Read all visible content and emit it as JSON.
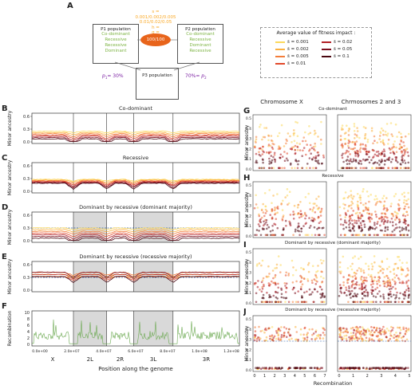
{
  "panelA": {
    "label": "A",
    "p1": {
      "title": "P1 population",
      "types": [
        "Co-dominant",
        "Recessive",
        "Recessive",
        "Dominant"
      ]
    },
    "p2": {
      "title": "P2 population",
      "types": [
        "Co-dominant",
        "Recessive",
        "Dominant",
        "Recessive"
      ]
    },
    "p3": {
      "title": "P3 population"
    },
    "s_line1": "s =",
    "s_line2": "0.001/0.002/0.005",
    "s_line3": "0.01/0.02/0.05",
    "h_line": "h =",
    "g_line": "g =",
    "center_label": "100/100",
    "p1_weight": "30%",
    "p1_sym": "p",
    "p2_weight": "70%",
    "p2_sym": "p"
  },
  "legend": {
    "title": "Average value of fitness impact :",
    "items": [
      {
        "label": "s̄ = 0.001",
        "color": "#fcd95c"
      },
      {
        "label": "s̄ = 0.002",
        "color": "#fbb040"
      },
      {
        "label": "s̄ = 0.005",
        "color": "#f47d3a"
      },
      {
        "label": "s̄ = 0.01",
        "color": "#e2492b"
      },
      {
        "label": "s̄ = 0.02",
        "color": "#b22026"
      },
      {
        "label": "s̄ = 0.05",
        "color": "#7a0e1e"
      },
      {
        "label": "s̄ = 0.1",
        "color": "#4a0710"
      }
    ]
  },
  "left_panels": {
    "B": {
      "label": "B",
      "title": "Co-dominant"
    },
    "C": {
      "label": "C",
      "title": "Recessive"
    },
    "D": {
      "label": "D",
      "title": "Dominant by recessive (dominant majority)"
    },
    "E": {
      "label": "E",
      "title": "Dominant by recessive (recessive majority)"
    },
    "F": {
      "label": "F",
      "title": ""
    },
    "ylabel_ancestry": "Minor ancestry",
    "ylabel_recomb": "Recombination",
    "yticks": [
      "0.0",
      "0.3",
      "0.6"
    ],
    "yticks_f": [
      "0",
      "2",
      "4",
      "6",
      "8",
      "10"
    ],
    "xticks": [
      "0.0e+00",
      "2.0e+07",
      "4.0e+07",
      "6.0e+07",
      "8.0e+07",
      "1.0e+08",
      "1.2e+08"
    ],
    "chromosomes": [
      "X",
      "2L",
      "2R",
      "3L",
      "3R"
    ],
    "xlabel": "Position along the genome"
  },
  "right_panels": {
    "col1_title": "Chromosome X",
    "col2_title": "Chrmosomes 2 and 3",
    "G": {
      "label": "G",
      "title": "Co-dominant"
    },
    "H": {
      "label": "H",
      "title": "Recessive"
    },
    "I": {
      "label": "I",
      "title": "Dominant by recessive (dominant majority)"
    },
    "J": {
      "label": "J",
      "title": "Dominant by recessive (recessive majority)"
    },
    "ylabel": "Minor ancestry",
    "yticks": [
      "0.0",
      "0.1",
      "0.2",
      "0.3",
      "0.4",
      "0.5"
    ],
    "xticks_x": [
      "0",
      "1",
      "2",
      "3",
      "4",
      "5",
      "6",
      "7"
    ],
    "xticks_a": [
      "0",
      "1",
      "2",
      "3",
      "4",
      "5"
    ],
    "xlabel": "Recombination"
  }
}
